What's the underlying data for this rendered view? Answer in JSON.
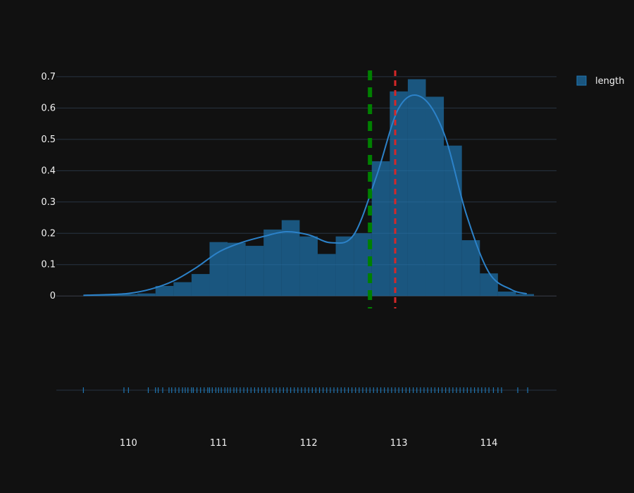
{
  "chart_data": {
    "type": "bar",
    "subtype": "histogram-with-kde-and-rug",
    "x_range": [
      109.2,
      114.75
    ],
    "y_range": [
      -0.04,
      0.72
    ],
    "y_ticks": [
      0,
      0.1,
      0.2,
      0.3,
      0.4,
      0.5,
      0.6,
      0.7
    ],
    "y_tick_labels": [
      "0",
      "0.1",
      "0.2",
      "0.3",
      "0.4",
      "0.5",
      "0.6",
      "0.7"
    ],
    "x_ticks": [
      110,
      111,
      112,
      113,
      114
    ],
    "x_tick_labels": [
      "110",
      "111",
      "112",
      "113",
      "114"
    ],
    "grid": true,
    "legend": {
      "placement": "top-right",
      "entries": [
        "length"
      ]
    },
    "series": [
      {
        "name": "length",
        "color": "#1f77b4",
        "bin_width": 0.2,
        "bins_start": [
          109.5,
          109.7,
          109.9,
          110.1,
          110.3,
          110.5,
          110.7,
          110.9,
          111.1,
          111.3,
          111.5,
          111.7,
          111.9,
          112.1,
          112.3,
          112.5,
          112.7,
          112.9,
          113.1,
          113.3,
          113.5,
          113.7,
          113.9,
          114.1,
          114.3
        ],
        "values": [
          0.002,
          0.004,
          0.006,
          0.008,
          0.032,
          0.044,
          0.07,
          0.172,
          0.17,
          0.16,
          0.212,
          0.242,
          0.19,
          0.134,
          0.19,
          0.2,
          0.43,
          0.653,
          0.692,
          0.636,
          0.48,
          0.178,
          0.072,
          0.014,
          0.006
        ]
      }
    ],
    "kde": {
      "x": [
        109.5,
        109.75,
        110.0,
        110.25,
        110.5,
        110.75,
        111.0,
        111.25,
        111.5,
        111.75,
        112.0,
        112.25,
        112.5,
        112.75,
        113.0,
        113.25,
        113.5,
        113.75,
        114.0,
        114.25,
        114.42
      ],
      "y": [
        0.002,
        0.004,
        0.008,
        0.022,
        0.048,
        0.09,
        0.14,
        0.17,
        0.19,
        0.205,
        0.195,
        0.17,
        0.195,
        0.38,
        0.6,
        0.635,
        0.52,
        0.26,
        0.075,
        0.02,
        0.007
      ]
    },
    "vlines": [
      {
        "x": 112.68,
        "color": "#008000",
        "style": "dashed"
      },
      {
        "x": 112.96,
        "color": "#d62728",
        "style": "dashed"
      }
    ],
    "rug": [
      109.5,
      109.95,
      110.0,
      110.22,
      110.3,
      110.33,
      110.38,
      110.45,
      110.48,
      110.52,
      110.56,
      110.6,
      110.63,
      110.66,
      110.7,
      110.72,
      110.76,
      110.8,
      110.84,
      110.88,
      110.9,
      110.93,
      110.97,
      111.0,
      111.03,
      111.07,
      111.1,
      111.13,
      111.17,
      111.2,
      111.24,
      111.28,
      111.32,
      111.36,
      111.4,
      111.44,
      111.48,
      111.52,
      111.56,
      111.6,
      111.64,
      111.68,
      111.72,
      111.76,
      111.8,
      111.84,
      111.88,
      111.92,
      111.96,
      112.0,
      112.04,
      112.08,
      112.12,
      112.16,
      112.2,
      112.24,
      112.28,
      112.32,
      112.36,
      112.4,
      112.44,
      112.48,
      112.52,
      112.56,
      112.6,
      112.64,
      112.68,
      112.72,
      112.76,
      112.8,
      112.84,
      112.88,
      112.92,
      112.96,
      113.0,
      113.04,
      113.08,
      113.12,
      113.16,
      113.2,
      113.24,
      113.28,
      113.32,
      113.36,
      113.4,
      113.44,
      113.48,
      113.52,
      113.56,
      113.6,
      113.64,
      113.68,
      113.72,
      113.76,
      113.8,
      113.84,
      113.88,
      113.92,
      113.96,
      114.0,
      114.05,
      114.1,
      114.14,
      114.32,
      114.43
    ]
  }
}
